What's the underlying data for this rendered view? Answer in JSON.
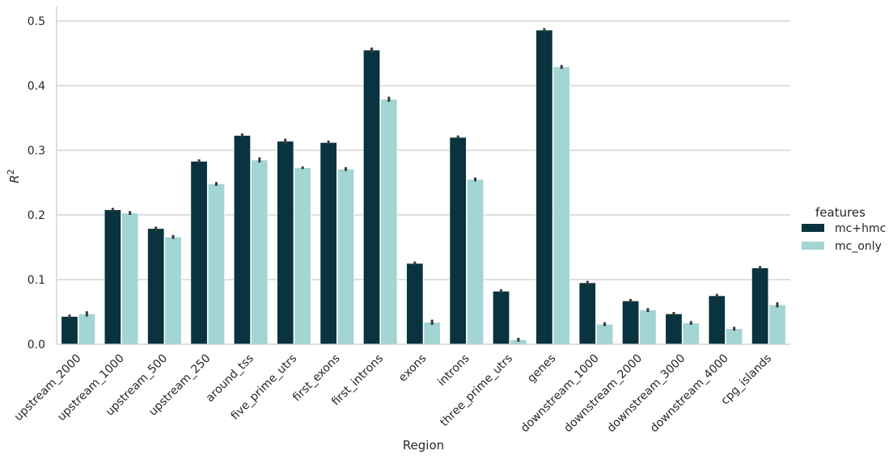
{
  "chart_data": {
    "type": "bar",
    "xlabel": "Region",
    "ylabel": "R²",
    "ylim": [
      0,
      0.52
    ],
    "yticks": [
      "0.0",
      "0.1",
      "0.2",
      "0.3",
      "0.4",
      "0.5"
    ],
    "grid": "horizontal",
    "legend_placement": "right",
    "legend_title": "features",
    "categories": [
      "upstream_2000",
      "upstream_1000",
      "upstream_500",
      "upstream_250",
      "around_tss",
      "five_prime_utrs",
      "first_exons",
      "first_introns",
      "exons",
      "introns",
      "three_prime_utrs",
      "genes",
      "downstream_1000",
      "downstream_2000",
      "downstream_3000",
      "downstream_4000",
      "cpg_islands"
    ],
    "series": [
      {
        "name": "mc+hmc",
        "color": "#08333f",
        "values": [
          0.043,
          0.208,
          0.179,
          0.283,
          0.323,
          0.314,
          0.312,
          0.455,
          0.125,
          0.32,
          0.082,
          0.486,
          0.095,
          0.067,
          0.047,
          0.075,
          0.118
        ],
        "errors": [
          0.003,
          0.003,
          0.003,
          0.003,
          0.003,
          0.004,
          0.003,
          0.004,
          0.003,
          0.003,
          0.003,
          0.003,
          0.003,
          0.003,
          0.003,
          0.003,
          0.003
        ]
      },
      {
        "name": "mc_only",
        "color": "#a2d5d4",
        "values": [
          0.047,
          0.203,
          0.166,
          0.248,
          0.285,
          0.273,
          0.271,
          0.379,
          0.034,
          0.255,
          0.007,
          0.429,
          0.031,
          0.053,
          0.033,
          0.024,
          0.061
        ],
        "errors": [
          0.004,
          0.003,
          0.003,
          0.003,
          0.004,
          0.002,
          0.003,
          0.004,
          0.004,
          0.003,
          0.003,
          0.003,
          0.003,
          0.003,
          0.003,
          0.003,
          0.004
        ]
      }
    ]
  }
}
